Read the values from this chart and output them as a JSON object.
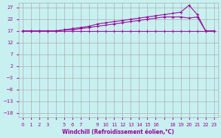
{
  "bg_color": "#c8f0f0",
  "grid_color": "#aaaaaa",
  "line_color": "#990099",
  "xlabel": "Windchill (Refroidissement éolien,°C)",
  "xlabel_color": "#990099",
  "ylabel_color": "#990099",
  "xlim": [
    -0.5,
    23.5
  ],
  "ylim": [
    -20,
    29
  ],
  "yticks": [
    -18,
    -13,
    -8,
    -3,
    2,
    7,
    12,
    17,
    22,
    27
  ],
  "xtick_labels": [
    "0",
    "1",
    "2",
    "3",
    "",
    "5",
    "6",
    "7",
    "",
    "9",
    "10",
    "11",
    "12",
    "13",
    "14",
    "15",
    "16",
    "",
    "18",
    "19",
    "20",
    "21",
    "22",
    "23"
  ],
  "line1_x": [
    0,
    1,
    2,
    3,
    4,
    5,
    6,
    7,
    8,
    9,
    10,
    11,
    12,
    13,
    14,
    15,
    16,
    17,
    18,
    19,
    20,
    21,
    22,
    23
  ],
  "line1_y": [
    17,
    17,
    17,
    17,
    17,
    17,
    17,
    17,
    17,
    17,
    17,
    17,
    17,
    17,
    17,
    17,
    17,
    17,
    17,
    17,
    17,
    17,
    17,
    17
  ],
  "line2_x": [
    0,
    1,
    2,
    3,
    4,
    5,
    6,
    7,
    8,
    9,
    10,
    11,
    12,
    13,
    14,
    15,
    16,
    17,
    18,
    19,
    20,
    21,
    22,
    23
  ],
  "line2_y": [
    17,
    17,
    17,
    17,
    17,
    17.5,
    17.5,
    18,
    18.5,
    19,
    19.5,
    20,
    20.5,
    21,
    21.5,
    22,
    22.5,
    23,
    23,
    23,
    22.5,
    23,
    17,
    17
  ],
  "line3_x": [
    0,
    1,
    2,
    3,
    4,
    5,
    6,
    7,
    8,
    9,
    10,
    11,
    12,
    13,
    14,
    15,
    16,
    17,
    18,
    19,
    20,
    21,
    22,
    23
  ],
  "line3_y": [
    17,
    17,
    17,
    17,
    17,
    17.5,
    18,
    18.5,
    19,
    20,
    20.5,
    21,
    21.5,
    22,
    22.5,
    23,
    23.5,
    24,
    24.5,
    25,
    28,
    24,
    17,
    17
  ],
  "marker": "+"
}
